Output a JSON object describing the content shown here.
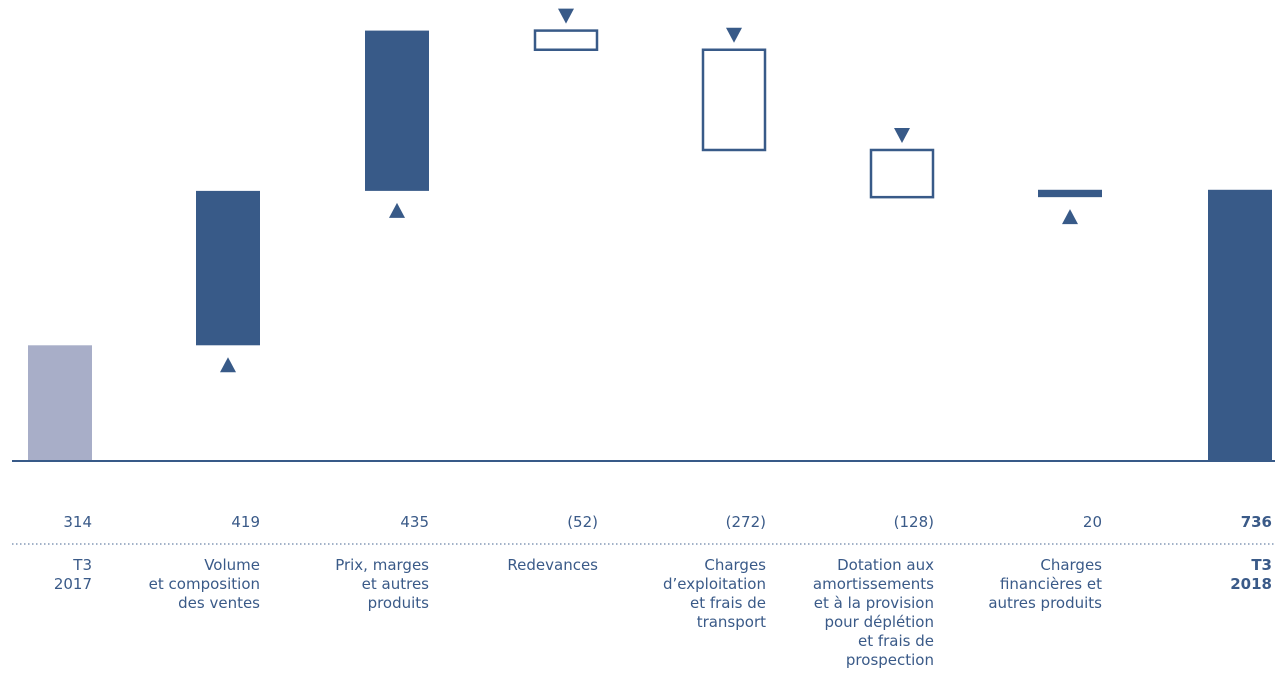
{
  "chart_data": {
    "type": "waterfall",
    "categories": [
      {
        "label": [
          "T3",
          "2017"
        ],
        "bold": false
      },
      {
        "label": [
          "Volume",
          "et composition",
          "des ventes"
        ],
        "bold": false
      },
      {
        "label": [
          "Prix, marges",
          "et autres",
          "produits"
        ],
        "bold": false
      },
      {
        "label": [
          "Redevances"
        ],
        "bold": false
      },
      {
        "label": [
          "Charges",
          "d’exploitation",
          "et frais de",
          "transport"
        ],
        "bold": false
      },
      {
        "label": [
          "Dotation aux",
          "amortissements",
          "et à la provision",
          "pour déplétion",
          "et frais de",
          "prospection"
        ],
        "bold": false
      },
      {
        "label": [
          "Charges",
          "financières et",
          "autres produits"
        ],
        "bold": false
      },
      {
        "label": [
          "T3",
          "2018"
        ],
        "bold": true
      }
    ],
    "values": [
      314,
      419,
      435,
      -52,
      -272,
      -128,
      20,
      736
    ],
    "value_labels": [
      "314",
      "419",
      "435",
      "(52)",
      "(272)",
      "(128)",
      "20",
      "736"
    ],
    "kinds": [
      "start",
      "delta",
      "delta",
      "delta",
      "delta",
      "delta",
      "delta",
      "total"
    ],
    "colors": {
      "start": "#a8aec8",
      "increase": "#385a88",
      "decrease_outline": "#385a88",
      "total": "#385a88",
      "text": "#3a5a88",
      "baseline": "#385a88",
      "separator": "#6b83a6"
    }
  }
}
